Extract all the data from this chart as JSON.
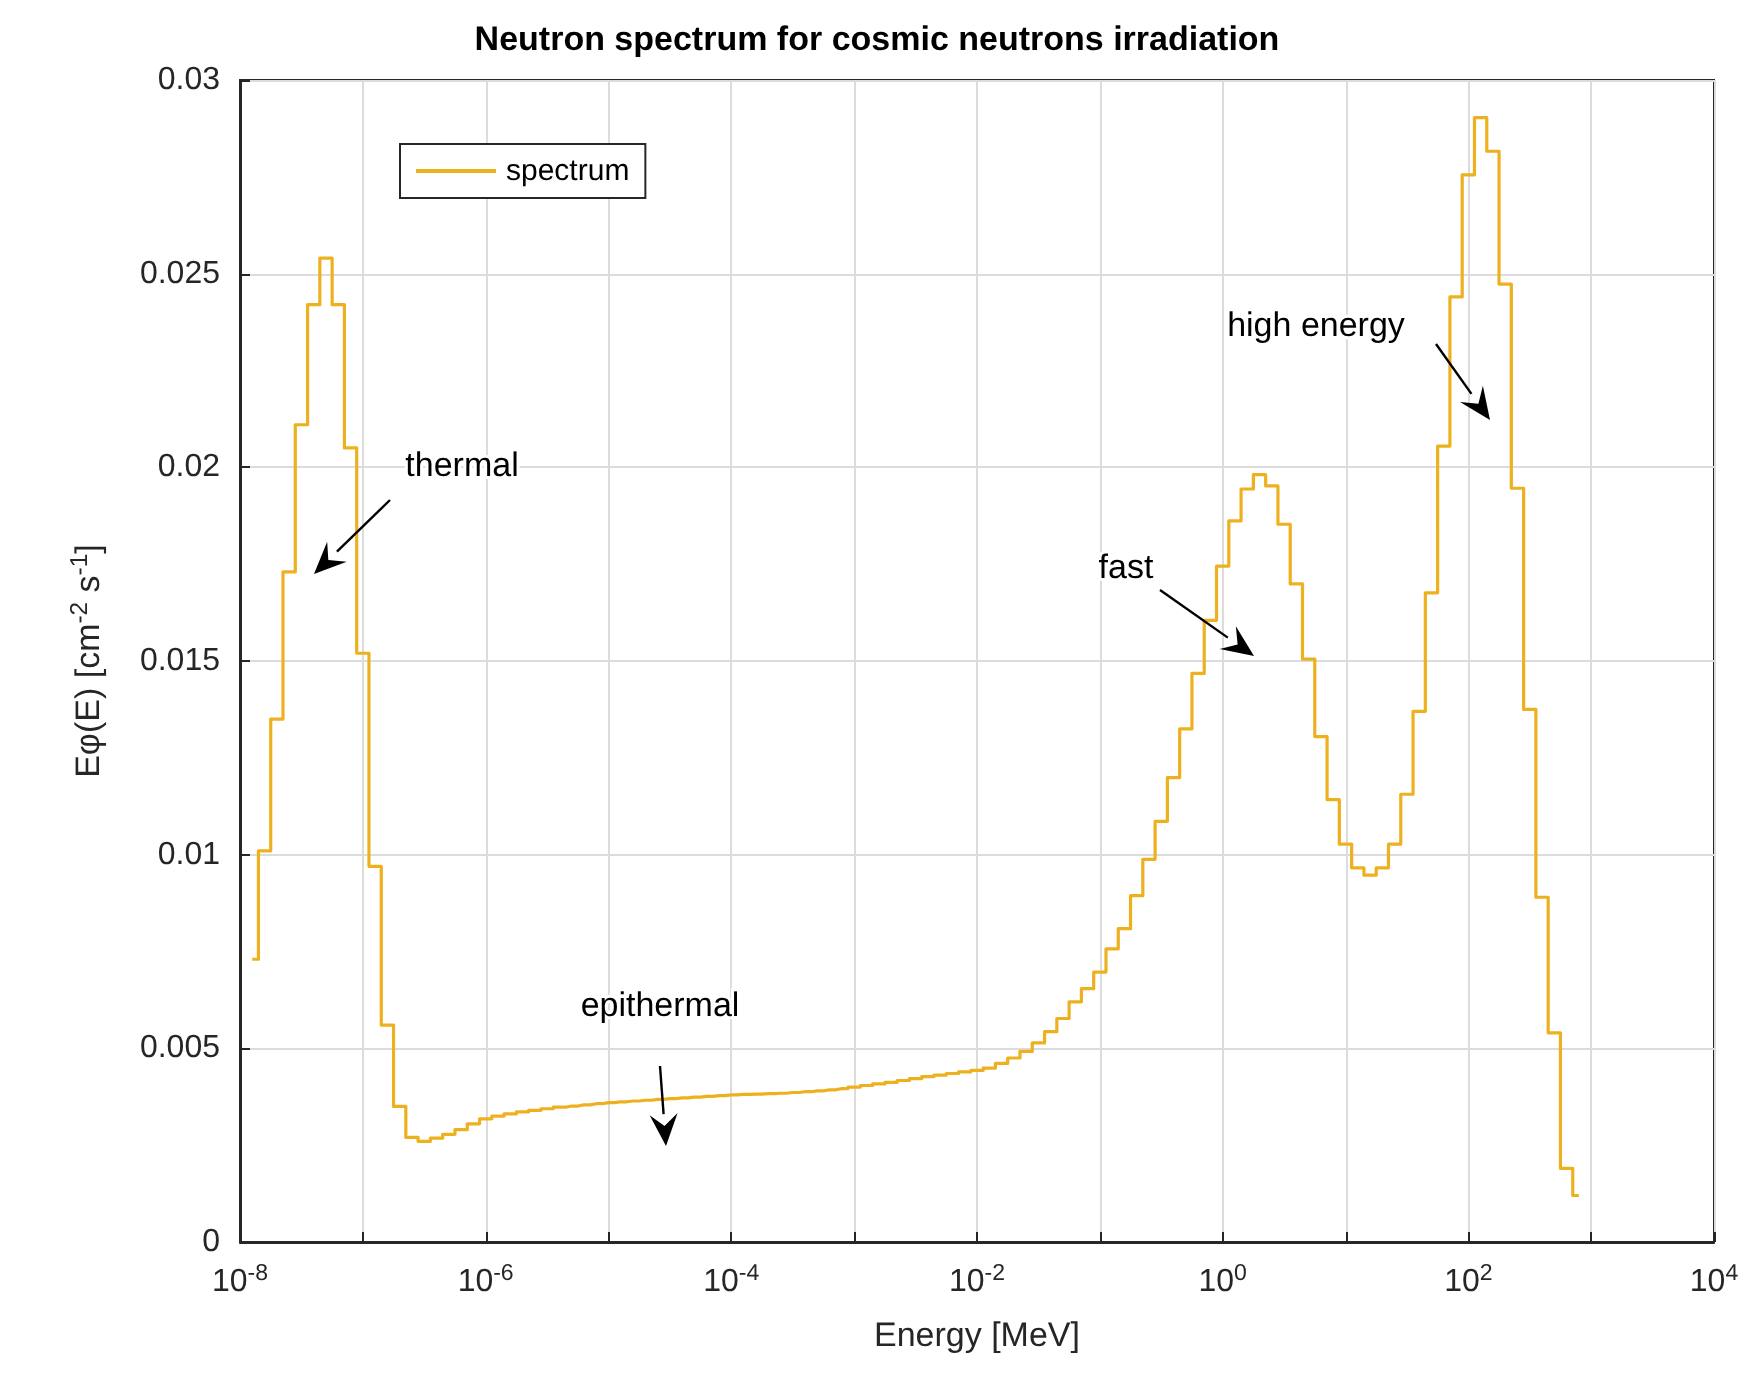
{
  "chart_data": {
    "type": "step",
    "title": "Neutron spectrum for cosmic neutrons irradiation",
    "xlabel": "Energy [MeV]",
    "ylabel": "Eφ(E) [cm$^{-2}$ s$^{-1}$]",
    "log": "x",
    "grid": true,
    "legend": "top left",
    "marker": "none",
    "line_style": "solid",
    "xlim": [
      1e-08,
      10000
    ],
    "ylim": [
      0,
      0.03
    ],
    "xticks": [
      {
        "value": 1e-08,
        "label": "10$^{-8}$"
      },
      {
        "value": 1e-07,
        "label": null
      },
      {
        "value": 1e-06,
        "label": "10$^{-6}$"
      },
      {
        "value": 1e-05,
        "label": null
      },
      {
        "value": 0.0001,
        "label": "10$^{-4}$"
      },
      {
        "value": 0.001,
        "label": null
      },
      {
        "value": 0.01,
        "label": "10$^{-2}$"
      },
      {
        "value": 0.1,
        "label": null
      },
      {
        "value": 1,
        "label": "10$^{0}$"
      },
      {
        "value": 10,
        "label": null
      },
      {
        "value": 100,
        "label": "10$^{2}$"
      },
      {
        "value": 1000,
        "label": null
      },
      {
        "value": 10000,
        "label": "10$^{4}$"
      }
    ],
    "yticks": [
      0,
      0.005,
      0.01,
      0.015,
      0.02,
      0.025,
      0.03
    ],
    "annotations": [
      "thermal",
      "epithermal",
      "fast",
      "high energy"
    ],
    "series": [
      {
        "name": "spectrum",
        "color": "#edb120",
        "x": [
          1.259e-08,
          1.585e-08,
          1.995e-08,
          2.512e-08,
          3.162e-08,
          3.981e-08,
          5.012e-08,
          6.31e-08,
          7.943e-08,
          1e-07,
          1.259e-07,
          1.585e-07,
          1.995e-07,
          2.512e-07,
          3.162e-07,
          3.981e-07,
          5.012e-07,
          6.31e-07,
          7.943e-07,
          1e-06,
          1.259e-06,
          1.585e-06,
          1.995e-06,
          2.512e-06,
          3.162e-06,
          3.981e-06,
          5.012e-06,
          6.31e-06,
          7.943e-06,
          1e-05,
          1.259e-05,
          1.585e-05,
          1.995e-05,
          2.512e-05,
          3.162e-05,
          3.981e-05,
          5.012e-05,
          6.31e-05,
          7.943e-05,
          0.0001,
          0.0001259,
          0.0001585,
          0.0001995,
          0.0002512,
          0.0003162,
          0.0003981,
          0.0005012,
          0.000631,
          0.0007943,
          0.001,
          0.001259,
          0.001585,
          0.001995,
          0.002512,
          0.003162,
          0.003981,
          0.005012,
          0.00631,
          0.007943,
          0.01,
          0.01259,
          0.01585,
          0.01995,
          0.02512,
          0.03162,
          0.03981,
          0.05012,
          0.0631,
          0.07943,
          0.1,
          0.1259,
          0.1585,
          0.1995,
          0.2512,
          0.3162,
          0.3981,
          0.5012,
          0.631,
          0.7943,
          1,
          1.259,
          1.585,
          1.995,
          2.512,
          3.162,
          3.981,
          5.012,
          6.31,
          7.943,
          10,
          12.59,
          15.85,
          19.95,
          25.12,
          31.62,
          39.81,
          50.12,
          63.1,
          79.43,
          100,
          125.9,
          158.5,
          199.5,
          251.2,
          316.2,
          398.1,
          501.2,
          631,
          794.3
        ],
        "values": [
          0.0073,
          0.0101,
          0.0135,
          0.0173,
          0.0211,
          0.0242,
          0.0254,
          0.0242,
          0.0205,
          0.0152,
          0.0097,
          0.0056,
          0.0035,
          0.0027,
          0.0026,
          0.00268,
          0.00278,
          0.0029,
          0.00305,
          0.00318,
          0.00325,
          0.00331,
          0.00336,
          0.0034,
          0.00344,
          0.00348,
          0.00351,
          0.00354,
          0.00357,
          0.0036,
          0.00362,
          0.00364,
          0.00366,
          0.00368,
          0.0037,
          0.00372,
          0.00374,
          0.00376,
          0.00378,
          0.0038,
          0.00381,
          0.00382,
          0.00383,
          0.00384,
          0.00386,
          0.00388,
          0.0039,
          0.00393,
          0.00396,
          0.004,
          0.00404,
          0.00408,
          0.00412,
          0.00417,
          0.00422,
          0.00427,
          0.00431,
          0.00435,
          0.00439,
          0.00443,
          0.00449,
          0.00461,
          0.00475,
          0.00492,
          0.00514,
          0.00543,
          0.00577,
          0.0062,
          0.00654,
          0.00697,
          0.00757,
          0.00809,
          0.00894,
          0.00988,
          0.01086,
          0.01199,
          0.01325,
          0.01468,
          0.01605,
          0.01745,
          0.01862,
          0.01944,
          0.01981,
          0.01952,
          0.01853,
          0.01699,
          0.01505,
          0.01305,
          0.01142,
          0.01027,
          0.00966,
          0.00947,
          0.00966,
          0.01027,
          0.01156,
          0.0137,
          0.01676,
          0.02055,
          0.0244,
          0.02755,
          0.02903,
          0.02816,
          0.02473,
          0.01946,
          0.01375,
          0.0089,
          0.0054,
          0.0019,
          0.0012
        ]
      }
    ]
  }
}
